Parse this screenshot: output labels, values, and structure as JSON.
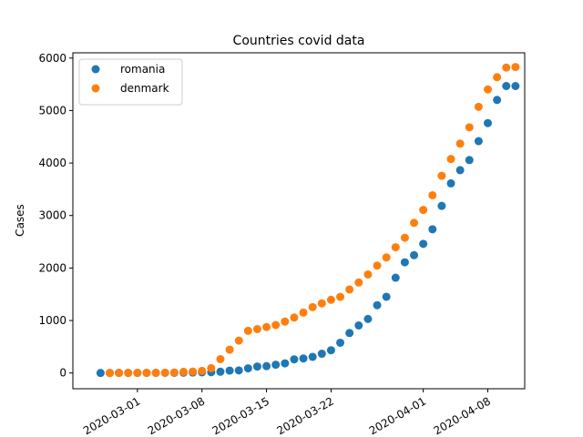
{
  "chart_data": {
    "type": "scatter",
    "title": "Countries covid data",
    "xlabel": "",
    "ylabel": "Cases",
    "xlim": [
      "2020-02-23",
      "2020-04-12"
    ],
    "ylim": [
      -300,
      6100
    ],
    "x_ticks": [
      "2020-03-01",
      "2020-03-08",
      "2020-03-15",
      "2020-03-22",
      "2020-04-01",
      "2020-04-08"
    ],
    "y_ticks": [
      0,
      1000,
      2000,
      3000,
      4000,
      5000,
      6000
    ],
    "legend_position": "upper-left",
    "grid": false,
    "series": [
      {
        "name": "romania",
        "color": "#1f77b4",
        "points": [
          [
            "2020-02-26",
            1
          ],
          [
            "2020-02-27",
            1
          ],
          [
            "2020-02-28",
            3
          ],
          [
            "2020-02-29",
            3
          ],
          [
            "2020-03-01",
            3
          ],
          [
            "2020-03-02",
            3
          ],
          [
            "2020-03-03",
            3
          ],
          [
            "2020-03-04",
            4
          ],
          [
            "2020-03-05",
            4
          ],
          [
            "2020-03-06",
            6
          ],
          [
            "2020-03-07",
            9
          ],
          [
            "2020-03-08",
            13
          ],
          [
            "2020-03-09",
            15
          ],
          [
            "2020-03-10",
            25
          ],
          [
            "2020-03-11",
            45
          ],
          [
            "2020-03-12",
            49
          ],
          [
            "2020-03-13",
            89
          ],
          [
            "2020-03-14",
            123
          ],
          [
            "2020-03-15",
            131
          ],
          [
            "2020-03-16",
            158
          ],
          [
            "2020-03-17",
            184
          ],
          [
            "2020-03-18",
            260
          ],
          [
            "2020-03-19",
            277
          ],
          [
            "2020-03-20",
            308
          ],
          [
            "2020-03-21",
            367
          ],
          [
            "2020-03-22",
            433
          ],
          [
            "2020-03-23",
            576
          ],
          [
            "2020-03-24",
            762
          ],
          [
            "2020-03-25",
            906
          ],
          [
            "2020-03-26",
            1029
          ],
          [
            "2020-03-27",
            1292
          ],
          [
            "2020-03-28",
            1452
          ],
          [
            "2020-03-29",
            1815
          ],
          [
            "2020-03-30",
            2109
          ],
          [
            "2020-03-31",
            2245
          ],
          [
            "2020-04-01",
            2460
          ],
          [
            "2020-04-02",
            2738
          ],
          [
            "2020-04-03",
            3183
          ],
          [
            "2020-04-04",
            3613
          ],
          [
            "2020-04-05",
            3864
          ],
          [
            "2020-04-06",
            4057
          ],
          [
            "2020-04-07",
            4417
          ],
          [
            "2020-04-08",
            4761
          ],
          [
            "2020-04-09",
            5202
          ],
          [
            "2020-04-10",
            5467
          ],
          [
            "2020-04-11",
            5467
          ]
        ]
      },
      {
        "name": "denmark",
        "color": "#ff7f0e",
        "points": [
          [
            "2020-02-27",
            1
          ],
          [
            "2020-02-28",
            1
          ],
          [
            "2020-02-29",
            1
          ],
          [
            "2020-03-01",
            2
          ],
          [
            "2020-03-02",
            3
          ],
          [
            "2020-03-03",
            4
          ],
          [
            "2020-03-04",
            5
          ],
          [
            "2020-03-05",
            10
          ],
          [
            "2020-03-06",
            22
          ],
          [
            "2020-03-07",
            28
          ],
          [
            "2020-03-08",
            40
          ],
          [
            "2020-03-09",
            92
          ],
          [
            "2020-03-10",
            264
          ],
          [
            "2020-03-11",
            444
          ],
          [
            "2020-03-12",
            617
          ],
          [
            "2020-03-13",
            804
          ],
          [
            "2020-03-14",
            836
          ],
          [
            "2020-03-15",
            875
          ],
          [
            "2020-03-16",
            914
          ],
          [
            "2020-03-17",
            980
          ],
          [
            "2020-03-18",
            1057
          ],
          [
            "2020-03-19",
            1151
          ],
          [
            "2020-03-20",
            1255
          ],
          [
            "2020-03-21",
            1326
          ],
          [
            "2020-03-22",
            1395
          ],
          [
            "2020-03-23",
            1450
          ],
          [
            "2020-03-24",
            1591
          ],
          [
            "2020-03-25",
            1724
          ],
          [
            "2020-03-26",
            1877
          ],
          [
            "2020-03-27",
            2046
          ],
          [
            "2020-03-28",
            2201
          ],
          [
            "2020-03-29",
            2395
          ],
          [
            "2020-03-30",
            2577
          ],
          [
            "2020-03-31",
            2860
          ],
          [
            "2020-04-01",
            3107
          ],
          [
            "2020-04-02",
            3386
          ],
          [
            "2020-04-03",
            3757
          ],
          [
            "2020-04-04",
            4077
          ],
          [
            "2020-04-05",
            4369
          ],
          [
            "2020-04-06",
            4681
          ],
          [
            "2020-04-07",
            5071
          ],
          [
            "2020-04-08",
            5402
          ],
          [
            "2020-04-09",
            5635
          ],
          [
            "2020-04-10",
            5819
          ],
          [
            "2020-04-11",
            5830
          ]
        ]
      }
    ]
  }
}
